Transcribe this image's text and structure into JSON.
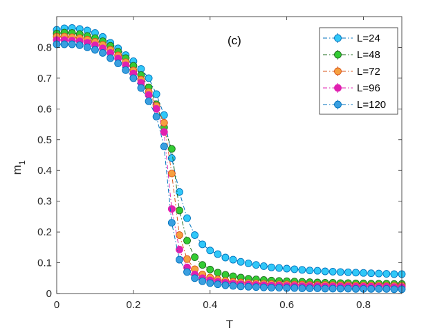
{
  "chart_data": {
    "type": "line",
    "panel_label": "(c)",
    "xlabel": "T",
    "ylabel_main": "m",
    "ylabel_sub": "1",
    "xlim": [
      0,
      0.9
    ],
    "ylim": [
      0,
      0.9
    ],
    "xticks": [
      0,
      0.2,
      0.4,
      0.6,
      0.8
    ],
    "xtick_labels": [
      "0",
      "0.2",
      "0.4",
      "0.6",
      "0.8"
    ],
    "yticks": [
      0,
      0.1,
      0.2,
      0.3,
      0.4,
      0.5,
      0.6,
      0.7,
      0.8
    ],
    "ytick_labels": [
      "0",
      "0.1",
      "0.2",
      "0.3",
      "0.4",
      "0.5",
      "0.6",
      "0.7",
      "0.8"
    ],
    "grid": false,
    "legend_position": "top-right",
    "series": [
      {
        "name": "L=24",
        "color": "#0072BD",
        "marker_color": "#30C8F8",
        "x": [
          0,
          0.02,
          0.04,
          0.06,
          0.08,
          0.1,
          0.12,
          0.14,
          0.16,
          0.18,
          0.2,
          0.22,
          0.24,
          0.26,
          0.28,
          0.3,
          0.32,
          0.34,
          0.36,
          0.38,
          0.4,
          0.42,
          0.44,
          0.46,
          0.48,
          0.5,
          0.52,
          0.54,
          0.56,
          0.58,
          0.6,
          0.62,
          0.64,
          0.66,
          0.68,
          0.7,
          0.72,
          0.74,
          0.76,
          0.78,
          0.8,
          0.82,
          0.84,
          0.86,
          0.88,
          0.9
        ],
        "values": [
          0.857,
          0.862,
          0.863,
          0.86,
          0.855,
          0.847,
          0.834,
          0.815,
          0.797,
          0.775,
          0.755,
          0.73,
          0.7,
          0.648,
          0.58,
          0.44,
          0.33,
          0.245,
          0.19,
          0.16,
          0.14,
          0.128,
          0.117,
          0.11,
          0.103,
          0.098,
          0.093,
          0.089,
          0.085,
          0.083,
          0.081,
          0.079,
          0.077,
          0.075,
          0.074,
          0.072,
          0.071,
          0.07,
          0.069,
          0.068,
          0.067,
          0.066,
          0.065,
          0.064,
          0.063,
          0.063
        ]
      },
      {
        "name": "L=48",
        "color": "#1E6B1E",
        "marker_color": "#33CC33",
        "x": [
          0,
          0.02,
          0.04,
          0.06,
          0.08,
          0.1,
          0.12,
          0.14,
          0.16,
          0.18,
          0.2,
          0.22,
          0.24,
          0.26,
          0.28,
          0.3,
          0.32,
          0.34,
          0.36,
          0.38,
          0.4,
          0.42,
          0.44,
          0.46,
          0.48,
          0.5,
          0.52,
          0.54,
          0.56,
          0.58,
          0.6,
          0.62,
          0.64,
          0.66,
          0.68,
          0.7,
          0.72,
          0.74,
          0.76,
          0.78,
          0.8,
          0.82,
          0.84,
          0.86,
          0.88,
          0.9
        ],
        "values": [
          0.845,
          0.848,
          0.847,
          0.843,
          0.837,
          0.83,
          0.82,
          0.805,
          0.786,
          0.765,
          0.74,
          0.71,
          0.67,
          0.615,
          0.54,
          0.47,
          0.27,
          0.172,
          0.118,
          0.093,
          0.078,
          0.068,
          0.061,
          0.056,
          0.052,
          0.048,
          0.046,
          0.044,
          0.042,
          0.041,
          0.04,
          0.039,
          0.038,
          0.037,
          0.036,
          0.035,
          0.035,
          0.034,
          0.034,
          0.033,
          0.033,
          0.032,
          0.032,
          0.032,
          0.031,
          0.031
        ]
      },
      {
        "name": "L=72",
        "color": "#D95319",
        "marker_color": "#F5A040",
        "x": [
          0,
          0.02,
          0.04,
          0.06,
          0.08,
          0.1,
          0.12,
          0.14,
          0.16,
          0.18,
          0.2,
          0.22,
          0.24,
          0.26,
          0.28,
          0.3,
          0.32,
          0.34,
          0.36,
          0.38,
          0.4,
          0.42,
          0.44,
          0.46,
          0.48,
          0.5,
          0.52,
          0.54,
          0.56,
          0.58,
          0.6,
          0.62,
          0.64,
          0.66,
          0.68,
          0.7,
          0.72,
          0.74,
          0.76,
          0.78,
          0.8,
          0.82,
          0.84,
          0.86,
          0.88,
          0.9
        ],
        "values": [
          0.835,
          0.835,
          0.833,
          0.83,
          0.825,
          0.818,
          0.808,
          0.792,
          0.774,
          0.752,
          0.725,
          0.695,
          0.655,
          0.61,
          0.555,
          0.39,
          0.19,
          0.112,
          0.079,
          0.062,
          0.052,
          0.046,
          0.041,
          0.038,
          0.036,
          0.034,
          0.033,
          0.032,
          0.031,
          0.03,
          0.03,
          0.029,
          0.029,
          0.028,
          0.028,
          0.028,
          0.027,
          0.027,
          0.027,
          0.026,
          0.026,
          0.026,
          0.026,
          0.025,
          0.025,
          0.025
        ]
      },
      {
        "name": "L=96",
        "color": "#E020B0",
        "marker_color": "#E020B0",
        "x": [
          0,
          0.02,
          0.04,
          0.06,
          0.08,
          0.1,
          0.12,
          0.14,
          0.16,
          0.18,
          0.2,
          0.22,
          0.24,
          0.26,
          0.28,
          0.3,
          0.32,
          0.34,
          0.36,
          0.38,
          0.4,
          0.42,
          0.44,
          0.46,
          0.48,
          0.5,
          0.52,
          0.54,
          0.56,
          0.58,
          0.6,
          0.62,
          0.64,
          0.66,
          0.68,
          0.7,
          0.72,
          0.74,
          0.76,
          0.78,
          0.8,
          0.82,
          0.84,
          0.86,
          0.88,
          0.9
        ],
        "values": [
          0.824,
          0.824,
          0.822,
          0.82,
          0.815,
          0.807,
          0.797,
          0.782,
          0.764,
          0.742,
          0.715,
          0.685,
          0.645,
          0.6,
          0.525,
          0.275,
          0.143,
          0.085,
          0.062,
          0.05,
          0.043,
          0.038,
          0.035,
          0.032,
          0.03,
          0.029,
          0.028,
          0.027,
          0.026,
          0.026,
          0.025,
          0.025,
          0.024,
          0.024,
          0.024,
          0.023,
          0.023,
          0.023,
          0.023,
          0.022,
          0.022,
          0.022,
          0.022,
          0.022,
          0.021,
          0.021
        ]
      },
      {
        "name": "L=120",
        "color": "#0072BD",
        "marker_color": "#3A9FE0",
        "x": [
          0,
          0.02,
          0.04,
          0.06,
          0.08,
          0.1,
          0.12,
          0.14,
          0.16,
          0.18,
          0.2,
          0.22,
          0.24,
          0.26,
          0.28,
          0.3,
          0.32,
          0.34,
          0.36,
          0.38,
          0.4,
          0.42,
          0.44,
          0.46,
          0.48,
          0.5,
          0.52,
          0.54,
          0.56,
          0.58,
          0.6,
          0.62,
          0.64,
          0.66,
          0.68,
          0.7,
          0.72,
          0.74,
          0.76,
          0.78,
          0.8,
          0.82,
          0.84,
          0.86,
          0.88,
          0.9
        ],
        "values": [
          0.81,
          0.81,
          0.81,
          0.807,
          0.8,
          0.792,
          0.782,
          0.765,
          0.748,
          0.726,
          0.7,
          0.668,
          0.625,
          0.575,
          0.478,
          0.23,
          0.11,
          0.07,
          0.05,
          0.04,
          0.034,
          0.03,
          0.027,
          0.025,
          0.023,
          0.022,
          0.021,
          0.02,
          0.019,
          0.019,
          0.018,
          0.018,
          0.017,
          0.017,
          0.017,
          0.016,
          0.016,
          0.016,
          0.016,
          0.015,
          0.015,
          0.015,
          0.015,
          0.015,
          0.014,
          0.014
        ]
      }
    ]
  }
}
